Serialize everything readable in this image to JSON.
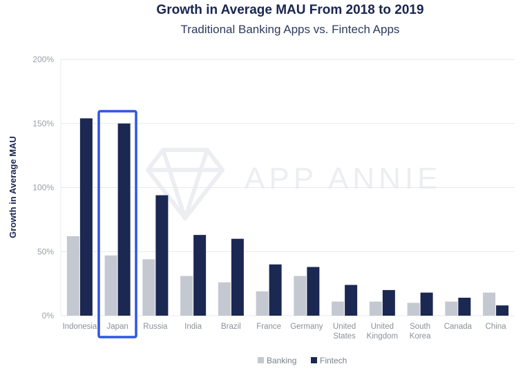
{
  "colors": {
    "banking": "#c4c8d1",
    "fintech": "#1b2852",
    "grid": "#e6e8ec",
    "highlight": "#2f55e4"
  },
  "watermark": "APP ANNIE",
  "chart_data": {
    "type": "bar",
    "title": "Growth in Average MAU From 2018 to 2019",
    "subtitle": "Traditional Banking Apps vs. Fintech Apps",
    "xlabel": "",
    "ylabel": "Growth in Average MAU",
    "ylim": [
      0,
      200
    ],
    "yticks": [
      "0%",
      "50%",
      "100%",
      "150%",
      "200%"
    ],
    "ytick_values": [
      0,
      50,
      100,
      150,
      200
    ],
    "grid": true,
    "legend_position": "bottom",
    "highlighted_category": "Japan",
    "categories": [
      [
        "Indonesia"
      ],
      [
        "Japan"
      ],
      [
        "Russia"
      ],
      [
        "India"
      ],
      [
        "Brazil"
      ],
      [
        "France"
      ],
      [
        "Germany"
      ],
      [
        "United",
        "States"
      ],
      [
        "United",
        "Kingdom"
      ],
      [
        "South",
        "Korea"
      ],
      [
        "Canada"
      ],
      [
        "China"
      ]
    ],
    "series": [
      {
        "name": "Banking",
        "values": [
          62,
          47,
          44,
          31,
          26,
          19,
          31,
          11,
          11,
          10,
          11,
          18
        ]
      },
      {
        "name": "Fintech",
        "values": [
          154,
          150,
          94,
          63,
          60,
          40,
          38,
          24,
          20,
          18,
          14,
          8
        ]
      }
    ]
  }
}
